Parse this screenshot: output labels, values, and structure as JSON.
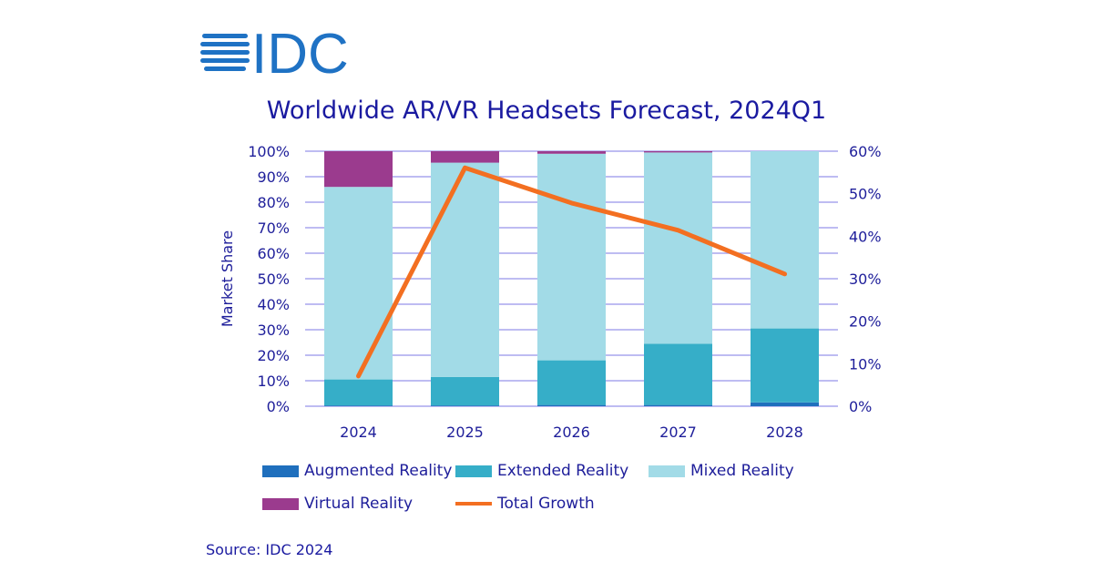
{
  "logo_text": "IDC",
  "chart_data": {
    "type": "bar",
    "stacked": true,
    "title": "Worldwide AR/VR Headsets Forecast, 2024Q1",
    "ylabel": "Market Share",
    "ylim": [
      0,
      100
    ],
    "y2lim": [
      0,
      60
    ],
    "yticks": [
      "0%",
      "10%",
      "20%",
      "30%",
      "40%",
      "50%",
      "60%",
      "70%",
      "80%",
      "90%",
      "100%"
    ],
    "y2ticks": [
      "0%",
      "10%",
      "20%",
      "30%",
      "40%",
      "50%",
      "60%"
    ],
    "categories": [
      "2024",
      "2025",
      "2026",
      "2027",
      "2028"
    ],
    "grid": true,
    "legend": "bottom",
    "series": [
      {
        "name": "Augmented Reality",
        "color": "#1f6fbd",
        "values": [
          0.3,
          0.3,
          0.5,
          0.5,
          1.5
        ]
      },
      {
        "name": "Extended Reality",
        "color": "#36aec8",
        "values": [
          10.2,
          11.2,
          17.5,
          24,
          29
        ]
      },
      {
        "name": "Mixed Reality",
        "color": "#a2dbe7",
        "values": [
          75.5,
          84,
          81,
          75,
          69.5
        ]
      },
      {
        "name": "Virtual Reality",
        "color": "#9b3b8e",
        "values": [
          14,
          4.5,
          1,
          0.5,
          0
        ]
      }
    ],
    "line": {
      "name": "Total Growth",
      "color": "#f36f21",
      "axis": "right",
      "values": [
        7.1,
        56.1,
        47.8,
        41.4,
        31.1
      ]
    }
  },
  "source": "Source: IDC 2024"
}
